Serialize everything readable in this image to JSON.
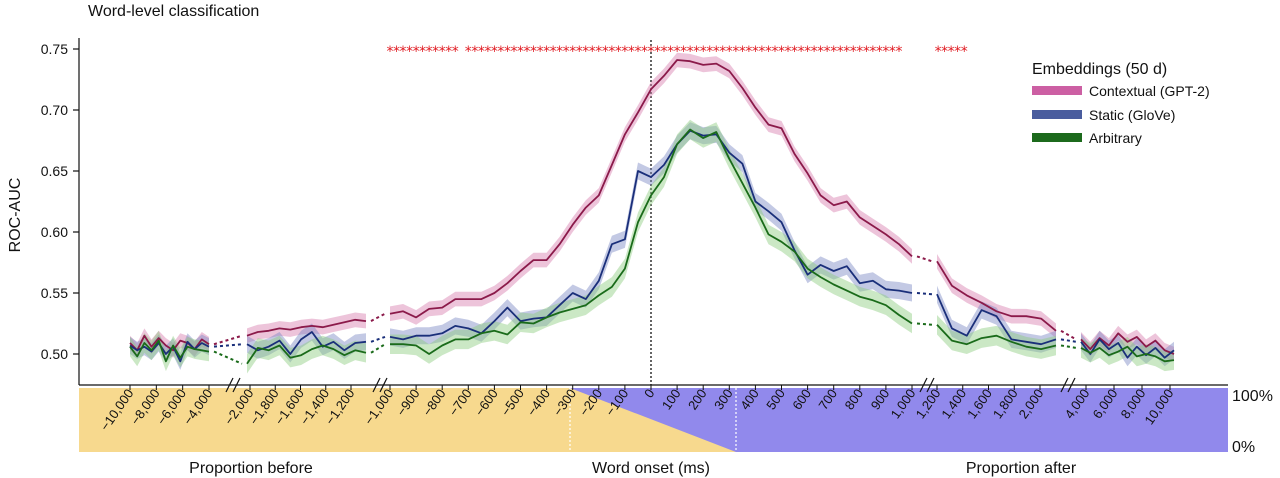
{
  "chart_data": {
    "type": "line",
    "title": "Word-level classification",
    "ylabel": "ROC-AUC",
    "xlabel": "Word onset (ms)",
    "ylim": [
      0.48,
      0.755
    ],
    "yticks": [
      "0.50",
      "0.55",
      "0.60",
      "0.65",
      "0.70",
      "0.75"
    ],
    "x_segments": {
      "before": [
        "−10,000",
        "−8,000",
        "−6,000",
        "−4,000",
        "−2,000",
        "−1,800",
        "−1,600",
        "−1,400",
        "−1,200"
      ],
      "center": [
        "−1,000",
        "−900",
        "−800",
        "−700",
        "−600",
        "−500",
        "−400",
        "−300",
        "−200",
        "−100",
        "0",
        "100",
        "200",
        "300",
        "400",
        "500",
        "600",
        "700",
        "800",
        "900",
        "1,000"
      ],
      "after": [
        "1,200",
        "1,400",
        "1,600",
        "1,800",
        "2,000",
        "4,000",
        "6,000",
        "8,000",
        "10,000"
      ]
    },
    "band_labels": {
      "before": "Proportion before",
      "center": "Word onset (ms)",
      "after": "Proportion after",
      "top": "100%",
      "bottom": "0%"
    },
    "legend": {
      "title": "Embeddings (50 d)",
      "placement": "top-right",
      "items": [
        "Contextual (GPT-2)",
        "Static (GloVe)",
        "Arbitrary"
      ]
    },
    "significance_marker": "*",
    "significance_ranges_ms": [
      [
        -1000,
        -750
      ],
      [
        -700,
        950
      ],
      [
        1100,
        1200
      ]
    ],
    "series": [
      {
        "name": "Contextual (GPT-2)",
        "color": "#8b1a4a",
        "band_color": "#d77cae",
        "ci": 0.006,
        "far_before": [
          0.509,
          0.503,
          0.515,
          0.506,
          0.513,
          0.507,
          0.503,
          0.511,
          0.509,
          0.504,
          0.512,
          0.508
        ],
        "near_before": [
          0.515,
          0.518,
          0.519,
          0.521,
          0.52,
          0.522,
          0.523,
          0.522,
          0.524,
          0.526,
          0.528,
          0.527
        ],
        "center": [
          [
            -1000,
            0.533
          ],
          [
            -950,
            0.535
          ],
          [
            -900,
            0.53
          ],
          [
            -850,
            0.537
          ],
          [
            -800,
            0.538
          ],
          [
            -750,
            0.545
          ],
          [
            -700,
            0.545
          ],
          [
            -650,
            0.545
          ],
          [
            -600,
            0.55
          ],
          [
            -550,
            0.558
          ],
          [
            -500,
            0.568
          ],
          [
            -450,
            0.577
          ],
          [
            -400,
            0.577
          ],
          [
            -350,
            0.59
          ],
          [
            -300,
            0.606
          ],
          [
            -250,
            0.62
          ],
          [
            -200,
            0.63
          ],
          [
            -150,
            0.655
          ],
          [
            -100,
            0.68
          ],
          [
            -50,
            0.698
          ],
          [
            0,
            0.717
          ],
          [
            50,
            0.728
          ],
          [
            100,
            0.741
          ],
          [
            150,
            0.74
          ],
          [
            200,
            0.737
          ],
          [
            250,
            0.738
          ],
          [
            300,
            0.732
          ],
          [
            350,
            0.718
          ],
          [
            400,
            0.702
          ],
          [
            450,
            0.688
          ],
          [
            500,
            0.685
          ],
          [
            550,
            0.664
          ],
          [
            600,
            0.648
          ],
          [
            650,
            0.63
          ],
          [
            700,
            0.622
          ],
          [
            750,
            0.625
          ],
          [
            800,
            0.612
          ],
          [
            850,
            0.605
          ],
          [
            900,
            0.598
          ],
          [
            950,
            0.59
          ],
          [
            1000,
            0.58
          ]
        ],
        "near_after": [
          0.576,
          0.556,
          0.548,
          0.542,
          0.535,
          0.531,
          0.531,
          0.529,
          0.519
        ],
        "far_after": [
          0.512,
          0.504,
          0.513,
          0.507,
          0.517,
          0.51,
          0.514,
          0.506,
          0.511,
          0.503,
          0.5
        ]
      },
      {
        "name": "Static (GloVe)",
        "color": "#1a2f7a",
        "band_color": "#7b88c4",
        "ci": 0.007,
        "far_before": [
          0.507,
          0.503,
          0.506,
          0.502,
          0.509,
          0.5,
          0.506,
          0.494,
          0.51,
          0.504,
          0.509,
          0.506
        ],
        "near_before": [
          0.508,
          0.503,
          0.506,
          0.511,
          0.5,
          0.512,
          0.518,
          0.506,
          0.51,
          0.503,
          0.509,
          0.51
        ],
        "center": [
          [
            -1000,
            0.514
          ],
          [
            -950,
            0.512
          ],
          [
            -900,
            0.515
          ],
          [
            -850,
            0.515
          ],
          [
            -800,
            0.517
          ],
          [
            -750,
            0.523
          ],
          [
            -700,
            0.521
          ],
          [
            -650,
            0.517
          ],
          [
            -600,
            0.527
          ],
          [
            -550,
            0.538
          ],
          [
            -500,
            0.527
          ],
          [
            -450,
            0.529
          ],
          [
            -400,
            0.53
          ],
          [
            -350,
            0.54
          ],
          [
            -300,
            0.55
          ],
          [
            -250,
            0.545
          ],
          [
            -200,
            0.56
          ],
          [
            -150,
            0.59
          ],
          [
            -100,
            0.594
          ],
          [
            -50,
            0.65
          ],
          [
            0,
            0.645
          ],
          [
            50,
            0.655
          ],
          [
            100,
            0.672
          ],
          [
            150,
            0.683
          ],
          [
            200,
            0.679
          ],
          [
            250,
            0.68
          ],
          [
            300,
            0.665
          ],
          [
            350,
            0.656
          ],
          [
            400,
            0.625
          ],
          [
            450,
            0.617
          ],
          [
            500,
            0.608
          ],
          [
            550,
            0.585
          ],
          [
            600,
            0.565
          ],
          [
            650,
            0.573
          ],
          [
            700,
            0.568
          ],
          [
            750,
            0.572
          ],
          [
            800,
            0.558
          ],
          [
            850,
            0.56
          ],
          [
            900,
            0.553
          ],
          [
            950,
            0.552
          ],
          [
            1000,
            0.55
          ]
        ],
        "near_after": [
          0.549,
          0.521,
          0.515,
          0.536,
          0.531,
          0.512,
          0.51,
          0.508,
          0.512
        ],
        "far_after": [
          0.51,
          0.5,
          0.512,
          0.504,
          0.509,
          0.497,
          0.506,
          0.499,
          0.505,
          0.497,
          0.503
        ]
      },
      {
        "name": "Arbitrary",
        "color": "#1a6b1a",
        "band_color": "#8ccc7e",
        "ci": 0.008,
        "far_before": [
          0.506,
          0.498,
          0.509,
          0.503,
          0.511,
          0.494,
          0.507,
          0.497,
          0.506,
          0.504,
          0.503,
          0.502
        ],
        "near_before": [
          0.492,
          0.505,
          0.503,
          0.507,
          0.497,
          0.499,
          0.504,
          0.507,
          0.504,
          0.499,
          0.503,
          0.501
        ],
        "center": [
          [
            -1000,
            0.508
          ],
          [
            -950,
            0.508
          ],
          [
            -900,
            0.507
          ],
          [
            -850,
            0.5
          ],
          [
            -800,
            0.507
          ],
          [
            -750,
            0.512
          ],
          [
            -700,
            0.512
          ],
          [
            -650,
            0.517
          ],
          [
            -600,
            0.519
          ],
          [
            -550,
            0.516
          ],
          [
            -500,
            0.526
          ],
          [
            -450,
            0.525
          ],
          [
            -400,
            0.53
          ],
          [
            -350,
            0.534
          ],
          [
            -300,
            0.537
          ],
          [
            -250,
            0.54
          ],
          [
            -200,
            0.548
          ],
          [
            -150,
            0.555
          ],
          [
            -100,
            0.57
          ],
          [
            -50,
            0.608
          ],
          [
            0,
            0.63
          ],
          [
            50,
            0.645
          ],
          [
            100,
            0.672
          ],
          [
            150,
            0.684
          ],
          [
            200,
            0.677
          ],
          [
            250,
            0.682
          ],
          [
            300,
            0.66
          ],
          [
            350,
            0.64
          ],
          [
            400,
            0.62
          ],
          [
            450,
            0.598
          ],
          [
            500,
            0.592
          ],
          [
            550,
            0.584
          ],
          [
            600,
            0.57
          ],
          [
            650,
            0.563
          ],
          [
            700,
            0.557
          ],
          [
            750,
            0.552
          ],
          [
            800,
            0.547
          ],
          [
            850,
            0.544
          ],
          [
            900,
            0.54
          ],
          [
            950,
            0.532
          ],
          [
            1000,
            0.525
          ]
        ],
        "near_after": [
          0.524,
          0.511,
          0.508,
          0.513,
          0.515,
          0.51,
          0.506,
          0.504,
          0.507
        ],
        "far_after": [
          0.505,
          0.501,
          0.505,
          0.499,
          0.502,
          0.506,
          0.498,
          0.5,
          0.498,
          0.494,
          0.495
        ]
      }
    ]
  }
}
